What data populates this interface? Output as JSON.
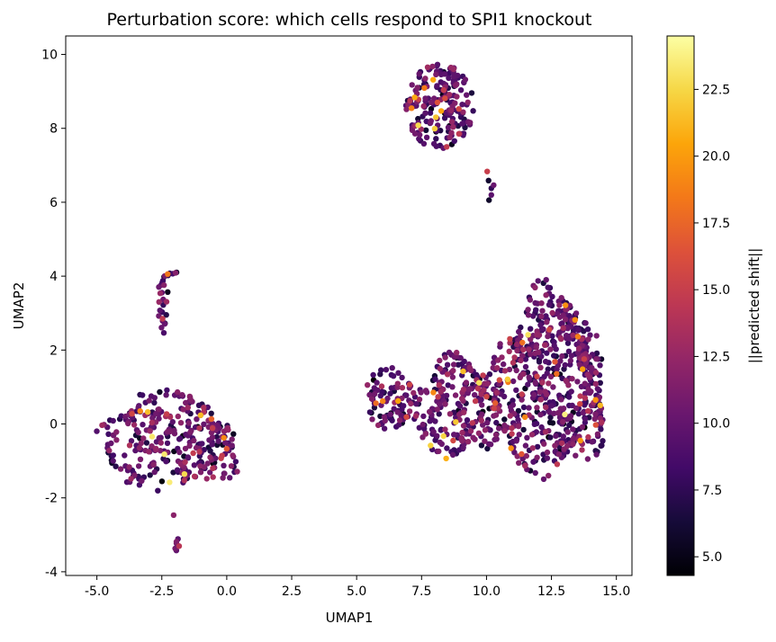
{
  "chart_data": {
    "type": "scatter",
    "title": "Perturbation score: which cells respond to SPI1 knockout",
    "xlabel": "UMAP1",
    "ylabel": "UMAP2",
    "xlim": [
      -6.2,
      15.6
    ],
    "ylim": [
      -4.1,
      10.5
    ],
    "x_ticks": [
      -5.0,
      -2.5,
      0.0,
      2.5,
      5.0,
      7.5,
      10.0,
      12.5,
      15.0
    ],
    "x_tick_labels": [
      "-5.0",
      "-2.5",
      "0.0",
      "2.5",
      "5.0",
      "7.5",
      "10.0",
      "12.5",
      "15.0"
    ],
    "y_ticks": [
      -4,
      -2,
      0,
      2,
      4,
      6,
      8,
      10
    ],
    "y_tick_labels": [
      "-4",
      "-2",
      "0",
      "2",
      "4",
      "6",
      "8",
      "10"
    ],
    "grid": false,
    "colorbar": {
      "label": "||predicted shift||",
      "colormap": "inferno",
      "range": [
        4.3,
        24.5
      ],
      "ticks": [
        5.0,
        7.5,
        10.0,
        12.5,
        15.0,
        17.5,
        20.0,
        22.5
      ],
      "tick_labels": [
        "5.0",
        "7.5",
        "10.0",
        "12.5",
        "15.0",
        "17.5",
        "20.0",
        "22.5"
      ]
    },
    "color_stops": [
      "#000004",
      "#160b39",
      "#420a68",
      "#6a176e",
      "#932667",
      "#bc3754",
      "#dd513a",
      "#f37819",
      "#fca50a",
      "#f6d746",
      "#fcffa4"
    ],
    "series": [
      {
        "clusters": [
          {
            "id": "top-island",
            "cx": 8.2,
            "cy": 8.6,
            "rx": 1.3,
            "ry": 1.15,
            "n": 200,
            "shape": "ellipse"
          },
          {
            "id": "top-tail",
            "x": [
              10.05,
              10.1,
              10.15,
              10.2,
              10.25,
              10.1
            ],
            "y": [
              6.85,
              6.6,
              6.4,
              6.2,
              6.5,
              6.05
            ]
          },
          {
            "id": "left-main",
            "cx": -2.0,
            "cy": -0.4,
            "rx": 2.7,
            "ry": 1.35,
            "n": 330,
            "shape": "blob"
          },
          {
            "id": "left-arm",
            "x": [
              -2.6,
              -2.55,
              -2.5,
              -2.45,
              -2.4,
              -2.35,
              -2.3,
              -2.25,
              -2.2,
              -2.1,
              -2.0,
              -1.9,
              -2.55,
              -2.45,
              -2.35,
              -2.55,
              -2.45,
              -2.6,
              -2.5,
              -2.4,
              -2.35,
              -2.5,
              -2.4,
              -2.45,
              -2.3,
              -2.6,
              -2.45,
              -2.5,
              -2.35,
              -2.5
            ],
            "y": [
              3.7,
              3.8,
              3.85,
              3.9,
              3.95,
              4.0,
              4.05,
              4.05,
              4.1,
              4.1,
              4.1,
              4.1,
              3.5,
              3.4,
              3.3,
              3.1,
              3.0,
              2.9,
              2.8,
              2.75,
              2.7,
              2.6,
              2.5,
              3.2,
              3.6,
              3.3,
              3.75,
              2.85,
              2.95,
              3.55
            ]
          },
          {
            "id": "left-stalk",
            "x": [
              -2.05,
              -1.85,
              -1.9,
              -2.0,
              -1.95,
              -1.8,
              -1.9
            ],
            "y": [
              -2.45,
              -3.15,
              -3.25,
              -3.35,
              -3.4,
              -3.3,
              -3.2
            ]
          },
          {
            "id": "right-main",
            "cx": 12.6,
            "cy": 1.2,
            "rx": 2.1,
            "ry": 2.5,
            "n": 620,
            "shape": "blob"
          },
          {
            "id": "mid-bridge",
            "cx": 9.0,
            "cy": 0.5,
            "rx": 1.7,
            "ry": 1.35,
            "n": 260,
            "shape": "blob"
          },
          {
            "id": "mid-left-lobe",
            "cx": 6.2,
            "cy": 0.7,
            "rx": 0.95,
            "ry": 0.85,
            "n": 90,
            "shape": "ellipse"
          }
        ],
        "value_distribution": {
          "mean": 9.5,
          "sd": 2.1,
          "min": 4.3,
          "max": 24.5
        }
      }
    ]
  }
}
